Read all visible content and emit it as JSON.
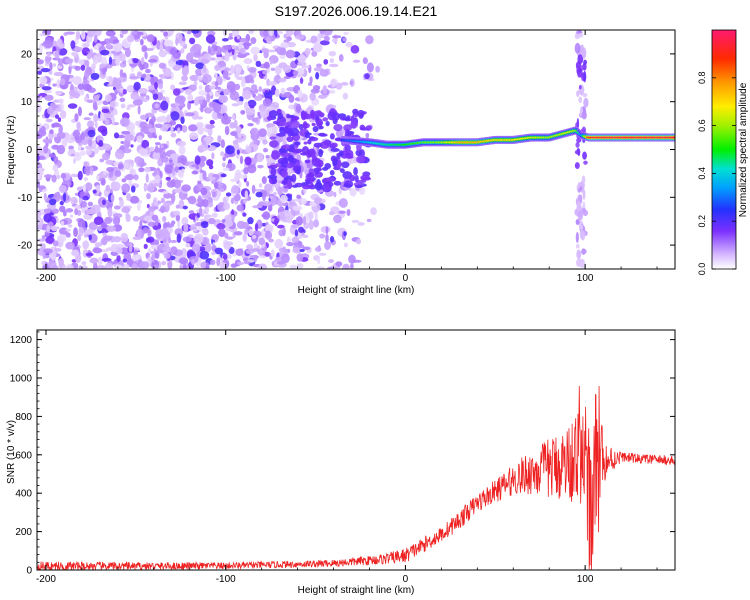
{
  "title": "S197.2026.006.19.14.E21",
  "chart_data": [
    {
      "type": "heatmap",
      "title": "S197.2026.006.19.14.E21",
      "xlabel": "Height of straight line (km)",
      "ylabel": "Frequency (Hz)",
      "xlim": [
        -205,
        150
      ],
      "ylim": [
        -25,
        25
      ],
      "xticks": [
        -200,
        -100,
        0,
        100
      ],
      "yticks": [
        -20,
        -10,
        0,
        10,
        20
      ],
      "colorbar": {
        "label": "Normalized spectral amplitude",
        "range": [
          0,
          1
        ],
        "ticks": [
          "0.0",
          "0.2",
          "0.4",
          "0.6",
          "0.8"
        ],
        "tick_values": [
          0.0,
          0.2,
          0.4,
          0.6,
          0.8
        ]
      },
      "ridge": {
        "x": [
          -35,
          -20,
          -10,
          0,
          10,
          20,
          30,
          40,
          50,
          60,
          70,
          80,
          90,
          95,
          98,
          102,
          110,
          120,
          130,
          140,
          150
        ],
        "freq_hz": [
          2,
          1.5,
          1,
          1,
          1.5,
          1.5,
          1.5,
          1.5,
          2,
          2,
          2.5,
          2.5,
          3.5,
          4,
          3,
          2.5,
          2.5,
          2.5,
          2.5,
          2.5,
          2.5
        ],
        "amplitude": [
          0.25,
          0.4,
          0.45,
          0.5,
          0.55,
          0.6,
          0.75,
          0.75,
          0.7,
          0.7,
          0.65,
          0.6,
          0.65,
          0.6,
          0.3,
          0.9,
          0.95,
          0.95,
          0.95,
          0.95,
          0.95
        ]
      },
      "noise_region_x": [
        -205,
        -30
      ],
      "transient_x": 98
    },
    {
      "type": "line",
      "xlabel": "Height of straight line (km)",
      "ylabel": "SNR (10 * v/v)",
      "xlim": [
        -205,
        150
      ],
      "ylim": [
        0,
        1250
      ],
      "xticks": [
        -200,
        -100,
        0,
        100
      ],
      "yticks": [
        0,
        200,
        400,
        600,
        800,
        1000,
        1200
      ],
      "color": "#ee2222",
      "series": [
        {
          "name": "SNR",
          "x": [
            -205,
            -150,
            -100,
            -60,
            -40,
            -20,
            -10,
            0,
            10,
            20,
            30,
            40,
            50,
            60,
            70,
            80,
            90,
            95,
            100,
            103,
            105,
            108,
            110,
            120,
            130,
            150
          ],
          "y": [
            20,
            20,
            22,
            30,
            35,
            50,
            60,
            75,
            130,
            185,
            260,
            350,
            410,
            470,
            510,
            530,
            560,
            600,
            560,
            300,
            500,
            650,
            560,
            590,
            580,
            570
          ],
          "jitter_amplitude": [
            25,
            20,
            18,
            18,
            20,
            25,
            30,
            40,
            40,
            40,
            50,
            50,
            60,
            80,
            120,
            160,
            200,
            260,
            320,
            380,
            420,
            320,
            120,
            25,
            25,
            25
          ]
        }
      ]
    }
  ]
}
